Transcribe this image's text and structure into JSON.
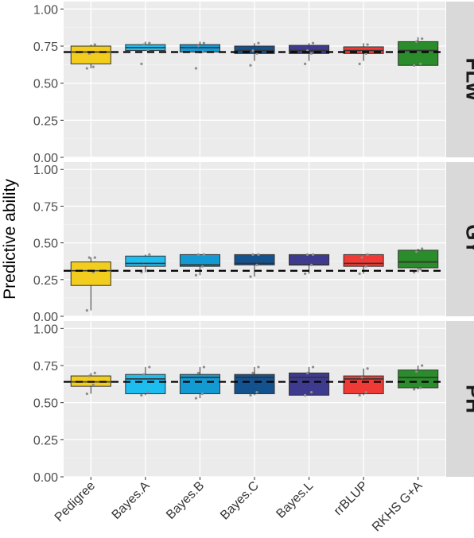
{
  "chart_data": {
    "type": "boxplot",
    "ylabel": "Predictive ability",
    "categories": [
      "Pedigree",
      "Bayes.A",
      "Bayes.B",
      "Bayes.C",
      "Bayes.L",
      "rrBLUP",
      "RKHS G+A"
    ],
    "colors": [
      "#F2CD1E",
      "#1EBDF0",
      "#149AD2",
      "#14528E",
      "#3E3A8E",
      "#F03A35",
      "#2A8C2A"
    ],
    "yticks": [
      "0.00",
      "0.25",
      "0.50",
      "0.75",
      "1.00"
    ],
    "ylim": [
      0,
      1.05
    ],
    "reference_line_style": "dashed",
    "facets": [
      {
        "label": "FLW",
        "reference": 0.71,
        "boxes": [
          {
            "min": 0.6,
            "q1": 0.63,
            "median": 0.71,
            "q3": 0.75,
            "max": 0.76
          },
          {
            "min": 0.72,
            "q1": 0.72,
            "median": 0.74,
            "q3": 0.76,
            "max": 0.78
          },
          {
            "min": 0.7,
            "q1": 0.71,
            "median": 0.74,
            "q3": 0.76,
            "max": 0.78
          },
          {
            "min": 0.65,
            "q1": 0.7,
            "median": 0.72,
            "q3": 0.75,
            "max": 0.77
          },
          {
            "min": 0.65,
            "q1": 0.7,
            "median": 0.72,
            "q3": 0.755,
            "max": 0.77
          },
          {
            "min": 0.65,
            "q1": 0.7,
            "median": 0.72,
            "q3": 0.745,
            "max": 0.77
          },
          {
            "min": 0.62,
            "q1": 0.62,
            "median": 0.72,
            "q3": 0.78,
            "max": 0.81
          }
        ],
        "points": [
          [
            0.6,
            0.61,
            0.7,
            0.76
          ],
          [
            0.63,
            0.72,
            0.76,
            0.77
          ],
          [
            0.6,
            0.71,
            0.75,
            0.77
          ],
          [
            0.62,
            0.7,
            0.72,
            0.77
          ],
          [
            0.63,
            0.7,
            0.72,
            0.77
          ],
          [
            0.63,
            0.7,
            0.71,
            0.76
          ],
          [
            0.62,
            0.63,
            0.78,
            0.8
          ]
        ]
      },
      {
        "label": "GY",
        "reference": 0.31,
        "boxes": [
          {
            "min": 0.04,
            "q1": 0.21,
            "median": 0.31,
            "q3": 0.37,
            "max": 0.4
          },
          {
            "min": 0.3,
            "q1": 0.34,
            "median": 0.36,
            "q3": 0.41,
            "max": 0.42
          },
          {
            "min": 0.28,
            "q1": 0.34,
            "median": 0.35,
            "q3": 0.42,
            "max": 0.42
          },
          {
            "min": 0.27,
            "q1": 0.35,
            "median": 0.36,
            "q3": 0.42,
            "max": 0.42
          },
          {
            "min": 0.29,
            "q1": 0.35,
            "median": 0.35,
            "q3": 0.42,
            "max": 0.42
          },
          {
            "min": 0.29,
            "q1": 0.34,
            "median": 0.36,
            "q3": 0.42,
            "max": 0.42
          },
          {
            "min": 0.3,
            "q1": 0.33,
            "median": 0.37,
            "q3": 0.45,
            "max": 0.46
          }
        ],
        "points": [
          [
            0.04,
            0.3,
            0.4,
            0.4
          ],
          [
            0.3,
            0.31,
            0.35,
            0.42
          ],
          [
            0.28,
            0.34,
            0.42,
            0.42
          ],
          [
            0.27,
            0.35,
            0.42,
            0.42
          ],
          [
            0.29,
            0.35,
            0.42,
            0.42
          ],
          [
            0.29,
            0.34,
            0.4,
            0.42
          ],
          [
            0.3,
            0.32,
            0.44,
            0.46
          ]
        ]
      },
      {
        "label": "PH",
        "reference": 0.64,
        "boxes": [
          {
            "min": 0.56,
            "q1": 0.61,
            "median": 0.64,
            "q3": 0.68,
            "max": 0.7
          },
          {
            "min": 0.55,
            "q1": 0.56,
            "median": 0.66,
            "q3": 0.69,
            "max": 0.74
          },
          {
            "min": 0.53,
            "q1": 0.56,
            "median": 0.67,
            "q3": 0.69,
            "max": 0.74
          },
          {
            "min": 0.55,
            "q1": 0.56,
            "median": 0.67,
            "q3": 0.69,
            "max": 0.74
          },
          {
            "min": 0.55,
            "q1": 0.55,
            "median": 0.67,
            "q3": 0.7,
            "max": 0.74
          },
          {
            "min": 0.55,
            "q1": 0.56,
            "median": 0.66,
            "q3": 0.68,
            "max": 0.73
          },
          {
            "min": 0.59,
            "q1": 0.6,
            "median": 0.67,
            "q3": 0.72,
            "max": 0.75
          }
        ],
        "points": [
          [
            0.56,
            0.62,
            0.68,
            0.7
          ],
          [
            0.55,
            0.57,
            0.69,
            0.74
          ],
          [
            0.53,
            0.56,
            0.7,
            0.74
          ],
          [
            0.55,
            0.57,
            0.7,
            0.74
          ],
          [
            0.55,
            0.57,
            0.7,
            0.74
          ],
          [
            0.55,
            0.57,
            0.67,
            0.73
          ],
          [
            0.59,
            0.6,
            0.71,
            0.75
          ]
        ]
      }
    ]
  }
}
